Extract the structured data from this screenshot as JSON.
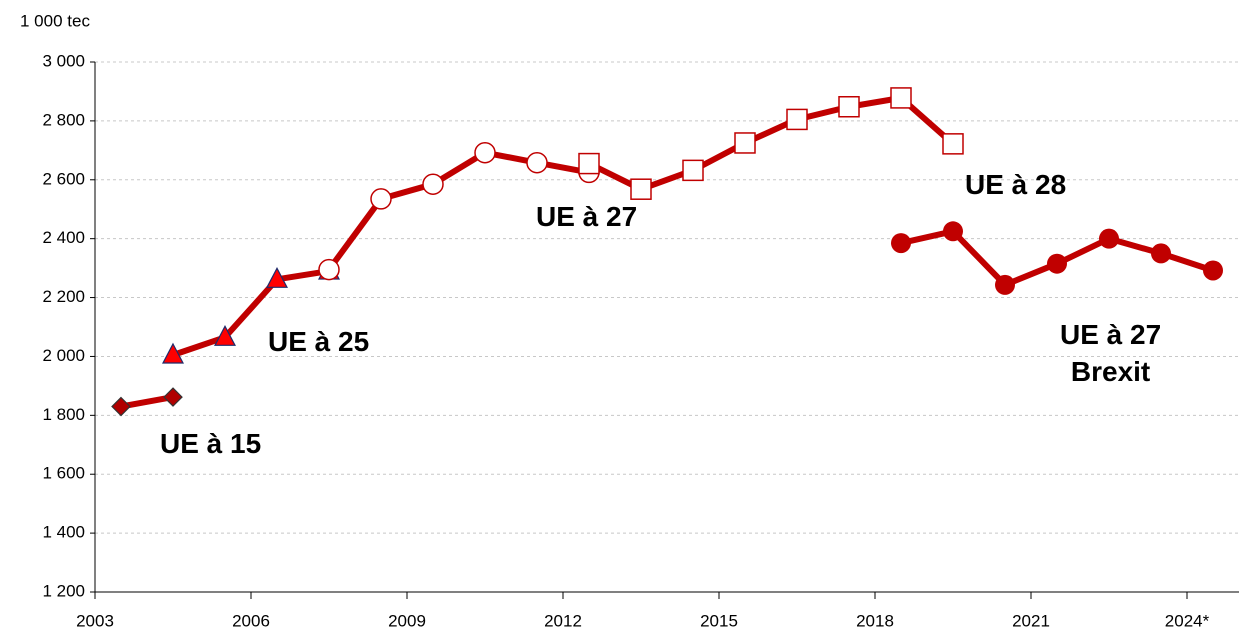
{
  "chart_data": {
    "type": "line",
    "y_label": "1 000 tec",
    "categories": [
      "2003",
      null,
      null,
      "2006",
      null,
      null,
      "2009",
      null,
      null,
      "2012",
      null,
      null,
      "2015",
      null,
      null,
      "2018",
      null,
      null,
      "2021",
      null,
      null,
      "2024*"
    ],
    "series": [
      {
        "name": "UE à 15",
        "color": "#c00000",
        "marker": "diamond",
        "values": [
          1830,
          1862,
          null,
          null,
          null,
          null,
          null,
          null,
          null,
          null,
          null,
          null,
          null,
          null,
          null,
          null,
          null,
          null,
          null,
          null,
          null,
          null
        ]
      },
      {
        "name": "UE à 25",
        "color": "#c00000",
        "marker": "triangle",
        "values": [
          null,
          2005,
          2065,
          2262,
          2290,
          null,
          null,
          null,
          null,
          null,
          null,
          null,
          null,
          null,
          null,
          null,
          null,
          null,
          null,
          null,
          null,
          null
        ]
      },
      {
        "name": "UE à 27",
        "color": "#c00000",
        "marker": "open-circle",
        "values": [
          null,
          null,
          null,
          null,
          2295,
          2535,
          2585,
          2692,
          2658,
          2625,
          null,
          null,
          null,
          null,
          null,
          null,
          null,
          null,
          null,
          null,
          null,
          null
        ]
      },
      {
        "name": "UE à 28",
        "color": "#c00000",
        "marker": "open-square",
        "values": [
          null,
          null,
          null,
          null,
          null,
          null,
          null,
          null,
          null,
          2655,
          2568,
          2632,
          2725,
          2805,
          2848,
          2878,
          2722,
          null,
          null,
          null,
          null,
          null
        ]
      },
      {
        "name": "UE à 27\nBrexit",
        "color": "#c00000",
        "marker": "circle",
        "values": [
          null,
          null,
          null,
          null,
          null,
          null,
          null,
          null,
          null,
          null,
          null,
          null,
          null,
          null,
          null,
          2385,
          2425,
          2243,
          2315,
          2400,
          2350,
          2292
        ]
      }
    ],
    "ylim": [
      1200,
      3000
    ],
    "yticks": [
      {
        "value": 1200,
        "label": "1 200"
      },
      {
        "value": 1400,
        "label": "1 400"
      },
      {
        "value": 1600,
        "label": "1 600"
      },
      {
        "value": 1800,
        "label": "1 800"
      },
      {
        "value": 2000,
        "label": "2 000"
      },
      {
        "value": 2200,
        "label": "2 200"
      },
      {
        "value": 2400,
        "label": "2 400"
      },
      {
        "value": 2600,
        "label": "2 600"
      },
      {
        "value": 2800,
        "label": "2 800"
      },
      {
        "value": 3000,
        "label": "3 000"
      }
    ],
    "grid": true
  }
}
